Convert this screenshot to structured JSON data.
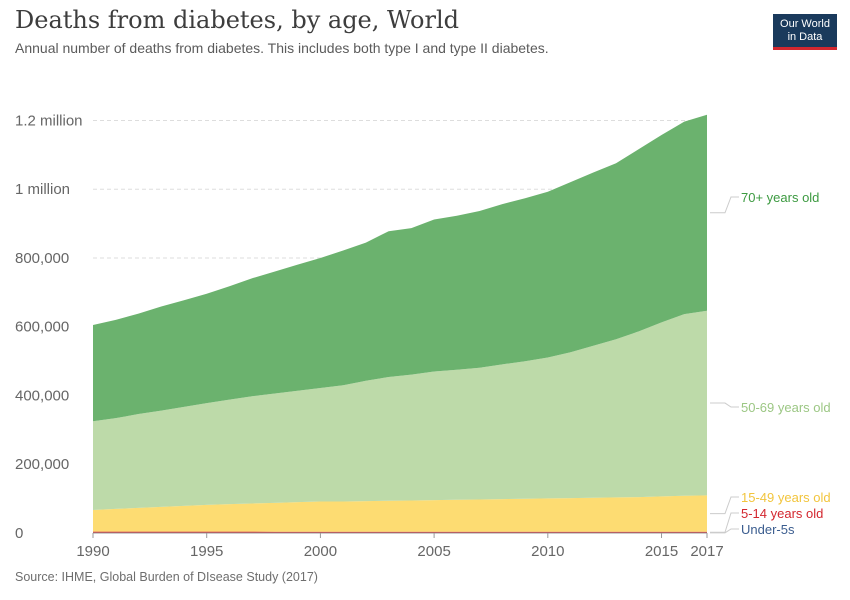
{
  "header": {
    "title": "Deaths from diabetes, by age, World",
    "subtitle": "Annual number of deaths from diabetes. This includes both type I and type II diabetes.",
    "logo_line1": "Our World",
    "logo_line2": "in Data"
  },
  "footer": {
    "source": "Source: IHME, Global Burden of DIsease Study (2017)"
  },
  "colors": {
    "70+ years old": "#6bb26e",
    "50-69 years old": "#bddaa9",
    "15-49 years old": "#fddc72",
    "5-14 years old": "#d3272f",
    "Under-5s": "#3b5d8f"
  },
  "chart_data": {
    "type": "area",
    "stacked": true,
    "title": "Deaths from diabetes, by age, World",
    "x": [
      1990,
      1991,
      1992,
      1993,
      1994,
      1995,
      1996,
      1997,
      1998,
      1999,
      2000,
      2001,
      2002,
      2003,
      2004,
      2005,
      2006,
      2007,
      2008,
      2009,
      2010,
      2011,
      2012,
      2013,
      2014,
      2015,
      2016,
      2017
    ],
    "series": [
      {
        "name": "Under-5s",
        "values": [
          1500,
          1500,
          1500,
          1500,
          1400,
          1400,
          1400,
          1400,
          1300,
          1300,
          1300,
          1300,
          1200,
          1200,
          1200,
          1200,
          1200,
          1100,
          1100,
          1100,
          1100,
          1100,
          1100,
          1000,
          1000,
          1000,
          1000,
          1000
        ]
      },
      {
        "name": "5-14 years old",
        "values": [
          2500,
          2500,
          2500,
          2500,
          2500,
          2500,
          2500,
          2500,
          2500,
          2500,
          2500,
          2500,
          2500,
          2500,
          2500,
          2500,
          2500,
          2500,
          2500,
          2500,
          2500,
          2500,
          2500,
          2500,
          2500,
          2500,
          2500,
          2500
        ]
      },
      {
        "name": "15-49 years old",
        "values": [
          63000,
          66000,
          69000,
          72000,
          75000,
          78000,
          80000,
          82000,
          84000,
          86000,
          88000,
          88000,
          89000,
          90000,
          91000,
          92000,
          93000,
          94000,
          95000,
          96000,
          97000,
          98000,
          99000,
          100000,
          101000,
          103000,
          105000,
          106000
        ]
      },
      {
        "name": "50-69 years old",
        "values": [
          258000,
          264000,
          273000,
          280000,
          288000,
          296000,
          304000,
          312000,
          318000,
          324000,
          330000,
          338000,
          350000,
          360000,
          366000,
          374000,
          378000,
          383000,
          392000,
          400000,
          410000,
          424000,
          442000,
          460000,
          482000,
          506000,
          528000,
          537000
        ]
      },
      {
        "name": "70+ years old",
        "values": [
          280000,
          286000,
          292000,
          303000,
          310000,
          318000,
          330000,
          343000,
          355000,
          367000,
          378000,
          392000,
          402000,
          424000,
          426000,
          442000,
          448000,
          456000,
          466000,
          474000,
          482000,
          495000,
          504000,
          512000,
          530000,
          545000,
          560000,
          570000
        ]
      }
    ],
    "ylim": [
      0,
      1370000
    ],
    "y_ticks": [
      0,
      200000,
      400000,
      600000,
      800000,
      1000000,
      1200000
    ],
    "y_tick_labels": [
      "0",
      "200,000",
      "400,000",
      "600,000",
      "800,000",
      "1 million",
      "1.2 million"
    ],
    "x_ticks": [
      1990,
      1995,
      2000,
      2005,
      2010,
      2015,
      2017
    ],
    "grid": "horizontal dashed",
    "legend": "right, inline labels"
  }
}
